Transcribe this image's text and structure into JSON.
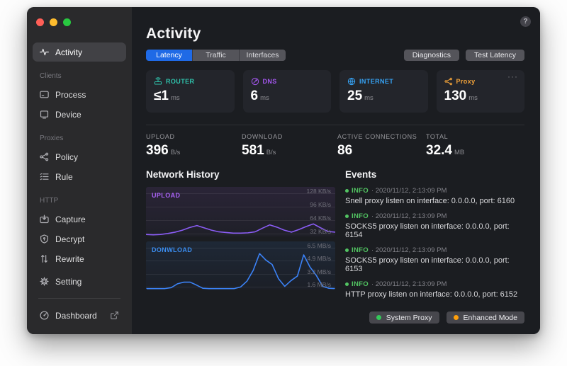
{
  "window": {
    "traffic_lights": [
      "#ff5f57",
      "#febc2e",
      "#28c840"
    ]
  },
  "sidebar": {
    "sections": [
      {
        "heading": "",
        "items": [
          {
            "label": "Activity"
          }
        ]
      },
      {
        "heading": "Clients",
        "items": [
          {
            "label": "Process"
          },
          {
            "label": "Device"
          }
        ]
      },
      {
        "heading": "Proxies",
        "items": [
          {
            "label": "Policy"
          },
          {
            "label": "Rule"
          }
        ]
      },
      {
        "heading": "HTTP",
        "items": [
          {
            "label": "Capture"
          },
          {
            "label": "Decrypt"
          },
          {
            "label": "Rewrite"
          }
        ]
      }
    ],
    "footer": {
      "setting": "Setting",
      "dashboard": "Dashboard"
    }
  },
  "header": {
    "title": "Activity",
    "help": "?"
  },
  "tabs": [
    {
      "label": "Latency",
      "active": true
    },
    {
      "label": "Traffic",
      "active": false
    },
    {
      "label": "Interfaces",
      "active": false
    }
  ],
  "actions": {
    "diagnostics": "Diagnostics",
    "test_latency": "Test Latency"
  },
  "latency_cards": [
    {
      "label": "ROUTER",
      "value": "≤1",
      "unit": "ms",
      "color": "#2fc4ad"
    },
    {
      "label": "DNS",
      "value": "6",
      "unit": "ms",
      "color": "#a557f0"
    },
    {
      "label": "INTERNET",
      "value": "25",
      "unit": "ms",
      "color": "#36a3f5"
    },
    {
      "label": "Proxy",
      "value": "130",
      "unit": "ms",
      "color": "#f2a33a",
      "menu": "···"
    }
  ],
  "stats": [
    {
      "label": "UPLOAD",
      "value": "396",
      "unit": "B/s"
    },
    {
      "label": "DOWNLOAD",
      "value": "581",
      "unit": "B/s"
    },
    {
      "label": "ACTIVE CONNECTIONS",
      "value": "86",
      "unit": ""
    },
    {
      "label": "TOTAL",
      "value": "32.4",
      "unit": "MB"
    }
  ],
  "network_history": {
    "title": "Network History"
  },
  "chart_data": [
    {
      "type": "line",
      "title": "UPLOAD",
      "color": "#8a5cf5",
      "label_color": "#a962f5",
      "unit": "KB/s",
      "ylim": [
        0,
        150
      ],
      "grid": true,
      "legend": "none",
      "tick_labels": [
        "128 KB/s",
        "96 KB/s",
        "64 KB/s",
        "32 KB/s"
      ],
      "tick_values": [
        128,
        96,
        64,
        32
      ],
      "values": [
        6,
        5,
        6,
        9,
        13,
        19,
        27,
        33,
        26,
        19,
        14,
        12,
        10,
        10,
        11,
        14,
        25,
        35,
        28,
        19,
        13,
        21,
        30,
        38,
        26,
        15,
        13
      ]
    },
    {
      "type": "line",
      "title": "DONWLOAD",
      "color": "#3b82f6",
      "label_color": "#3b8df0",
      "unit": "MB/s",
      "ylim": [
        0,
        7.5
      ],
      "grid": true,
      "legend": "none",
      "tick_labels": [
        "6.5 MB/s",
        "4.9 MB/s",
        "3.2 MB/s",
        "1.6 MB/s"
      ],
      "tick_values": [
        6.5,
        4.9,
        3.2,
        1.6
      ],
      "values": [
        0.15,
        0.15,
        0.15,
        0.15,
        0.3,
        0.9,
        1.15,
        1.15,
        0.7,
        0.2,
        0.15,
        0.15,
        0.15,
        0.15,
        0.15,
        0.4,
        1.3,
        3.0,
        5.6,
        4.6,
        3.9,
        1.7,
        0.5,
        1.4,
        2.1,
        5.4,
        3.5,
        2.2,
        0.5,
        0.2,
        0.15
      ]
    }
  ],
  "events": {
    "title": "Events",
    "info_color": "#52c462",
    "items": [
      {
        "level": "INFO",
        "timestamp": "· 2020/11/12, 2:13:09 PM",
        "message": "Snell proxy listen on interface: 0.0.0.0, port: 6160"
      },
      {
        "level": "INFO",
        "timestamp": "· 2020/11/12, 2:13:09 PM",
        "message": "SOCKS5 proxy listen on interface: 0.0.0.0, port: 6154"
      },
      {
        "level": "INFO",
        "timestamp": "· 2020/11/12, 2:13:09 PM",
        "message": "SOCKS5 proxy listen on interface: 0.0.0.0, port: 6153"
      },
      {
        "level": "INFO",
        "timestamp": "· 2020/11/12, 2:13:09 PM",
        "message": "HTTP proxy listen on interface: 0.0.0.0, port: 6152"
      }
    ]
  },
  "footer_badges": [
    {
      "label": "System Proxy",
      "dot_color": "#34c759"
    },
    {
      "label": "Enhanced Mode",
      "dot_color": "#ff9f0a"
    }
  ]
}
